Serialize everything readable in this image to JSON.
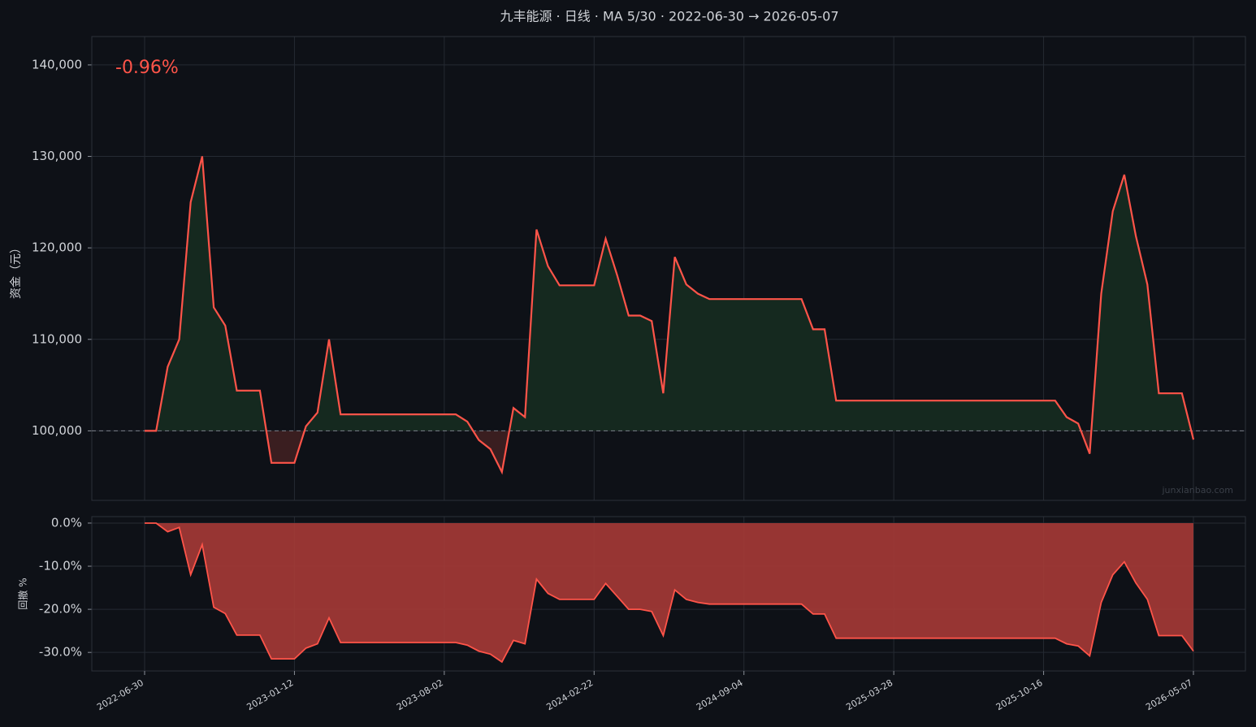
{
  "chart_data": [
    {
      "type": "line",
      "title": "九丰能源 · 日线 · MA 5/30 · 2022-06-30 → 2026-05-07",
      "y_label": "资金（元）",
      "annotation": "-0.96%",
      "watermark": "junxianbao.com",
      "categories": [
        "2022-06-30",
        null,
        null,
        null,
        null,
        null,
        null,
        null,
        null,
        null,
        null,
        null,
        null,
        "2023-01-12",
        null,
        null,
        null,
        null,
        null,
        null,
        null,
        null,
        null,
        null,
        null,
        null,
        "2023-08-02",
        null,
        null,
        null,
        null,
        null,
        null,
        null,
        null,
        null,
        null,
        null,
        null,
        "2024-02-22",
        null,
        null,
        null,
        null,
        null,
        null,
        null,
        null,
        null,
        null,
        null,
        null,
        "2024-09-04",
        null,
        null,
        null,
        null,
        null,
        null,
        null,
        null,
        null,
        null,
        null,
        null,
        "2025-03-28",
        null,
        null,
        null,
        null,
        null,
        null,
        null,
        null,
        null,
        null,
        null,
        null,
        "2025-10-16",
        null,
        null,
        null,
        null,
        null,
        null,
        null,
        null,
        null,
        null,
        null,
        null,
        "2026-05-07"
      ],
      "series": [
        {
          "color": "#ff5449",
          "values": [
            100000,
            100000,
            107000,
            110000,
            125000,
            130000,
            113500,
            111500,
            104400,
            104400,
            104400,
            96500,
            96500,
            96500,
            100500,
            102000,
            110000,
            101800,
            101800,
            101800,
            101800,
            101800,
            101800,
            101800,
            101800,
            101800,
            101800,
            101800,
            101000,
            99000,
            98000,
            95500,
            102500,
            101500,
            122000,
            118000,
            115900,
            115900,
            115900,
            115900,
            121000,
            117000,
            112600,
            112600,
            112000,
            104100,
            119000,
            116000,
            115000,
            114400,
            114400,
            114400,
            114400,
            114400,
            114400,
            114400,
            114400,
            114400,
            111100,
            111100,
            103300,
            103300,
            103300,
            103300,
            103300,
            103300,
            103300,
            103300,
            103300,
            103300,
            103300,
            103300,
            103300,
            103300,
            103300,
            103300,
            103300,
            103300,
            103300,
            103300,
            101500,
            100800,
            97500,
            115000,
            124000,
            128000,
            121300,
            116000,
            104100,
            104100,
            104100,
            99040
          ]
        }
      ],
      "baseline": 100000,
      "ylim": [
        92400,
        143100
      ],
      "yticks": [
        {
          "value": 100000,
          "label": "100,000"
        },
        {
          "value": 110000,
          "label": "110,000"
        },
        {
          "value": 120000,
          "label": "120,000"
        },
        {
          "value": 130000,
          "label": "130,000"
        },
        {
          "value": 140000,
          "label": "140,000"
        }
      ],
      "grid": true
    },
    {
      "type": "area",
      "y_label": "回撤 %",
      "series": [
        {
          "color": "#ff5449",
          "values": [
            0,
            0,
            -2,
            -1,
            -12,
            -5,
            -19.5,
            -21,
            -26,
            -26,
            -26,
            -31.5,
            -31.5,
            -31.5,
            -29,
            -28,
            -22,
            -27.7,
            -27.7,
            -27.7,
            -27.7,
            -27.7,
            -27.7,
            -27.7,
            -27.7,
            -27.7,
            -27.7,
            -27.7,
            -28.3,
            -29.7,
            -30.4,
            -32.2,
            -27.2,
            -28,
            -13,
            -16.3,
            -17.7,
            -17.7,
            -17.7,
            -17.7,
            -14,
            -17,
            -20,
            -20,
            -20.5,
            -26.1,
            -15.5,
            -17.7,
            -18.4,
            -18.8,
            -18.8,
            -18.8,
            -18.8,
            -18.8,
            -18.8,
            -18.8,
            -18.8,
            -18.8,
            -21.1,
            -21.1,
            -26.7,
            -26.7,
            -26.7,
            -26.7,
            -26.7,
            -26.7,
            -26.7,
            -26.7,
            -26.7,
            -26.7,
            -26.7,
            -26.7,
            -26.7,
            -26.7,
            -26.7,
            -26.7,
            -26.7,
            -26.7,
            -26.7,
            -26.7,
            -28,
            -28.5,
            -30.8,
            -18.4,
            -12,
            -9,
            -13.9,
            -17.7,
            -26.1,
            -26.1,
            -26.1,
            -29.7
          ]
        }
      ],
      "ylim": [
        -34.3,
        1.5
      ],
      "yticks": [
        {
          "value": 0,
          "label": "0.0%"
        },
        {
          "value": -10,
          "label": "-10.0%"
        },
        {
          "value": -20,
          "label": "-20.0%"
        },
        {
          "value": -30,
          "label": "-30.0%"
        }
      ],
      "grid": true
    }
  ]
}
